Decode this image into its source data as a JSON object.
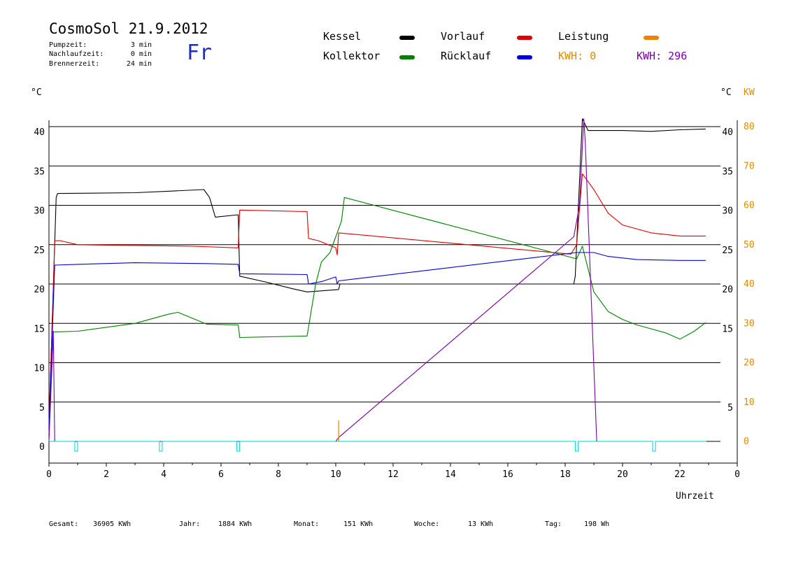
{
  "header": {
    "title": "CosmoSol 21.9.2012",
    "day": "Fr",
    "stats": [
      {
        "label": "Pumpzeit:",
        "value": "3 min"
      },
      {
        "label": "Nachlaufzeit:",
        "value": "0 min"
      },
      {
        "label": "Brennerzeit:",
        "value": "24 min"
      }
    ]
  },
  "legend": {
    "items": [
      {
        "label": "Kessel",
        "color": "#000000"
      },
      {
        "label": "Vorlauf",
        "color": "#e00000"
      },
      {
        "label": "Leistung",
        "color": "#f08000"
      },
      {
        "label": "Kollektor",
        "color": "#008000"
      },
      {
        "label": "Rücklauf",
        "color": "#0000e0"
      }
    ],
    "kwh_orange": "KWH: 0",
    "kwh_purple": "KWH: 296"
  },
  "axes": {
    "left_unit": "°C",
    "right_unit_c": "°C",
    "right_unit_kw": "KW",
    "xlabel": "Uhrzeit"
  },
  "footer": [
    {
      "label": "Gesamt:",
      "value": "36905 KWh"
    },
    {
      "label": "Jahr:",
      "value": "1884 KWh"
    },
    {
      "label": "Monat:",
      "value": "151 KWh"
    },
    {
      "label": "Woche:",
      "value": "13 KWh"
    },
    {
      "label": "Tag:",
      "value": "198 Wh"
    }
  ],
  "chart_data": {
    "type": "line",
    "xlabel": "Uhrzeit",
    "xlim": [
      0,
      24
    ],
    "x_ticks": [
      "0",
      "2",
      "4",
      "6",
      "8",
      "10",
      "12",
      "14",
      "16",
      "18",
      "20",
      "22",
      "0"
    ],
    "ylim": [
      0,
      40
    ],
    "y_ticks_left": [
      "0",
      "5",
      "10",
      "15",
      "20",
      "25",
      "30",
      "35",
      "40"
    ],
    "y_ticks_right_c": [
      "5",
      "15",
      "20",
      "25",
      "30",
      "35",
      "40"
    ],
    "y2lim": [
      0,
      80
    ],
    "y_ticks_right_kw": [
      "0",
      "10",
      "20",
      "30",
      "40",
      "50",
      "60",
      "70",
      "80"
    ],
    "grid": "horizontal",
    "series": [
      {
        "name": "Kessel",
        "color": "#000000",
        "points": [
          [
            0,
            2
          ],
          [
            0.25,
            31
          ],
          [
            0.3,
            31.5
          ],
          [
            3,
            31.6
          ],
          [
            4.2,
            31.8
          ],
          [
            5.4,
            32
          ],
          [
            5.6,
            31
          ],
          [
            5.8,
            28.5
          ],
          [
            6.6,
            28.8
          ],
          [
            6.65,
            21
          ],
          [
            7.5,
            20.3
          ],
          [
            8.5,
            19.4
          ],
          [
            9.0,
            19
          ],
          [
            10.1,
            19.3
          ],
          [
            10.15,
            20
          ],
          [
            18.3,
            20
          ],
          [
            18.35,
            21
          ],
          [
            18.45,
            29
          ],
          [
            18.6,
            41
          ],
          [
            18.8,
            39.5
          ],
          [
            20,
            39.5
          ],
          [
            21,
            39.4
          ],
          [
            22,
            39.6
          ],
          [
            22.9,
            39.7
          ]
        ]
      },
      {
        "name": "Vorlauf",
        "color": "#e00000",
        "points": [
          [
            0,
            2
          ],
          [
            0.2,
            25.5
          ],
          [
            0.4,
            25.5
          ],
          [
            1,
            25
          ],
          [
            3,
            24.9
          ],
          [
            5,
            24.8
          ],
          [
            6.6,
            24.6
          ],
          [
            6.65,
            29.4
          ],
          [
            9,
            29.2
          ],
          [
            9.05,
            25.8
          ],
          [
            9.4,
            25.5
          ],
          [
            10.0,
            24.6
          ],
          [
            10.05,
            23.7
          ],
          [
            10.1,
            26.5
          ],
          [
            18.2,
            23.8
          ],
          [
            18.4,
            25
          ],
          [
            18.6,
            34
          ],
          [
            19,
            32
          ],
          [
            19.5,
            29
          ],
          [
            20,
            27.5
          ],
          [
            21,
            26.5
          ],
          [
            22,
            26.1
          ],
          [
            22.9,
            26.1
          ]
        ]
      },
      {
        "name": "Kollektor",
        "color": "#008000",
        "points": [
          [
            0,
            1
          ],
          [
            0.15,
            13.9
          ],
          [
            1,
            14
          ],
          [
            3,
            15
          ],
          [
            4.2,
            16.2
          ],
          [
            4.5,
            16.4
          ],
          [
            5.5,
            14.9
          ],
          [
            6.6,
            14.8
          ],
          [
            6.65,
            13.2
          ],
          [
            9.0,
            13.4
          ],
          [
            9.3,
            20
          ],
          [
            9.5,
            22.8
          ],
          [
            9.8,
            24
          ],
          [
            10.2,
            28
          ],
          [
            10.3,
            31
          ],
          [
            18.4,
            23.2
          ],
          [
            18.6,
            24.8
          ],
          [
            19,
            19
          ],
          [
            19.5,
            16.5
          ],
          [
            20,
            15.5
          ],
          [
            20.5,
            14.8
          ],
          [
            21,
            14.3
          ],
          [
            21.5,
            13.8
          ],
          [
            22,
            13
          ],
          [
            22.5,
            14
          ],
          [
            22.9,
            15.1
          ]
        ]
      },
      {
        "name": "Rücklauf",
        "color": "#0000e0",
        "points": [
          [
            0,
            1.5
          ],
          [
            0.2,
            22.4
          ],
          [
            1,
            22.5
          ],
          [
            3,
            22.7
          ],
          [
            5.5,
            22.6
          ],
          [
            6.6,
            22.5
          ],
          [
            6.65,
            21.3
          ],
          [
            9,
            21.2
          ],
          [
            9.05,
            20
          ],
          [
            9.5,
            20.3
          ],
          [
            10.0,
            20.9
          ],
          [
            10.05,
            20
          ],
          [
            10.1,
            20.4
          ],
          [
            18.4,
            24
          ],
          [
            19,
            24
          ],
          [
            19.5,
            23.5
          ],
          [
            20.5,
            23.1
          ],
          [
            22,
            23
          ],
          [
            22.9,
            23
          ]
        ]
      },
      {
        "name": "Leistung",
        "color": "#7a00a8",
        "axis": "kw",
        "points": [
          [
            0,
            0
          ],
          [
            0.15,
            28
          ],
          [
            0.2,
            0
          ],
          [
            10.0,
            0
          ],
          [
            10.1,
            1
          ],
          [
            18.3,
            52
          ],
          [
            18.5,
            60
          ],
          [
            18.65,
            82
          ],
          [
            18.7,
            76
          ],
          [
            19.1,
            0
          ]
        ]
      }
    ]
  }
}
